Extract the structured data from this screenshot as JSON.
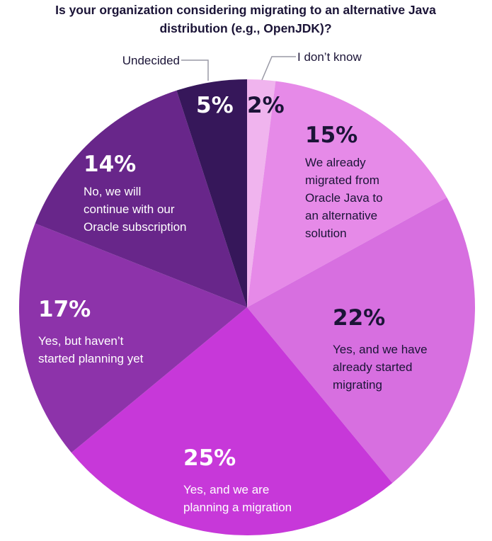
{
  "chart_data": {
    "type": "pie",
    "title_lines": [
      "Is your organization considering migrating to an alternative Java",
      "distribution (e.g., OpenJDK)?"
    ],
    "slices": [
      {
        "value": 2,
        "value_label": "2%",
        "label_lines": [
          "I don’t know"
        ],
        "color": "#f0b4ee",
        "label_color": "#1b1437",
        "pct_color": "#1b1437"
      },
      {
        "value": 15,
        "value_label": "15%",
        "label_lines": [
          "We already",
          "migrated from",
          "Oracle Java to",
          "an alternative",
          "solution"
        ],
        "color": "#e68ae8",
        "label_color": "#1b1437",
        "pct_color": "#1b1437"
      },
      {
        "value": 22,
        "value_label": "22%",
        "label_lines": [
          "Yes, and we have",
          "already started",
          "migrating"
        ],
        "color": "#d76fe0",
        "label_color": "#1b1437",
        "pct_color": "#1b1437"
      },
      {
        "value": 25,
        "value_label": "25%",
        "label_lines": [
          "Yes, and we are",
          "planning a migration"
        ],
        "color": "#c738d9",
        "label_color": "#ffffff",
        "pct_color": "#ffffff"
      },
      {
        "value": 17,
        "value_label": "17%",
        "label_lines": [
          "Yes, but haven’t",
          "started planning yet"
        ],
        "color": "#8d33aa",
        "label_color": "#ffffff",
        "pct_color": "#ffffff"
      },
      {
        "value": 14,
        "value_label": "14%",
        "label_lines": [
          "No, we will",
          "continue with our",
          "Oracle subscription"
        ],
        "color": "#68268a",
        "label_color": "#ffffff",
        "pct_color": "#ffffff"
      },
      {
        "value": 5,
        "value_label": "5%",
        "label_lines": [
          "Undecided"
        ],
        "color": "#36175a",
        "label_color": "#1b1437",
        "pct_color": "#ffffff"
      }
    ]
  }
}
